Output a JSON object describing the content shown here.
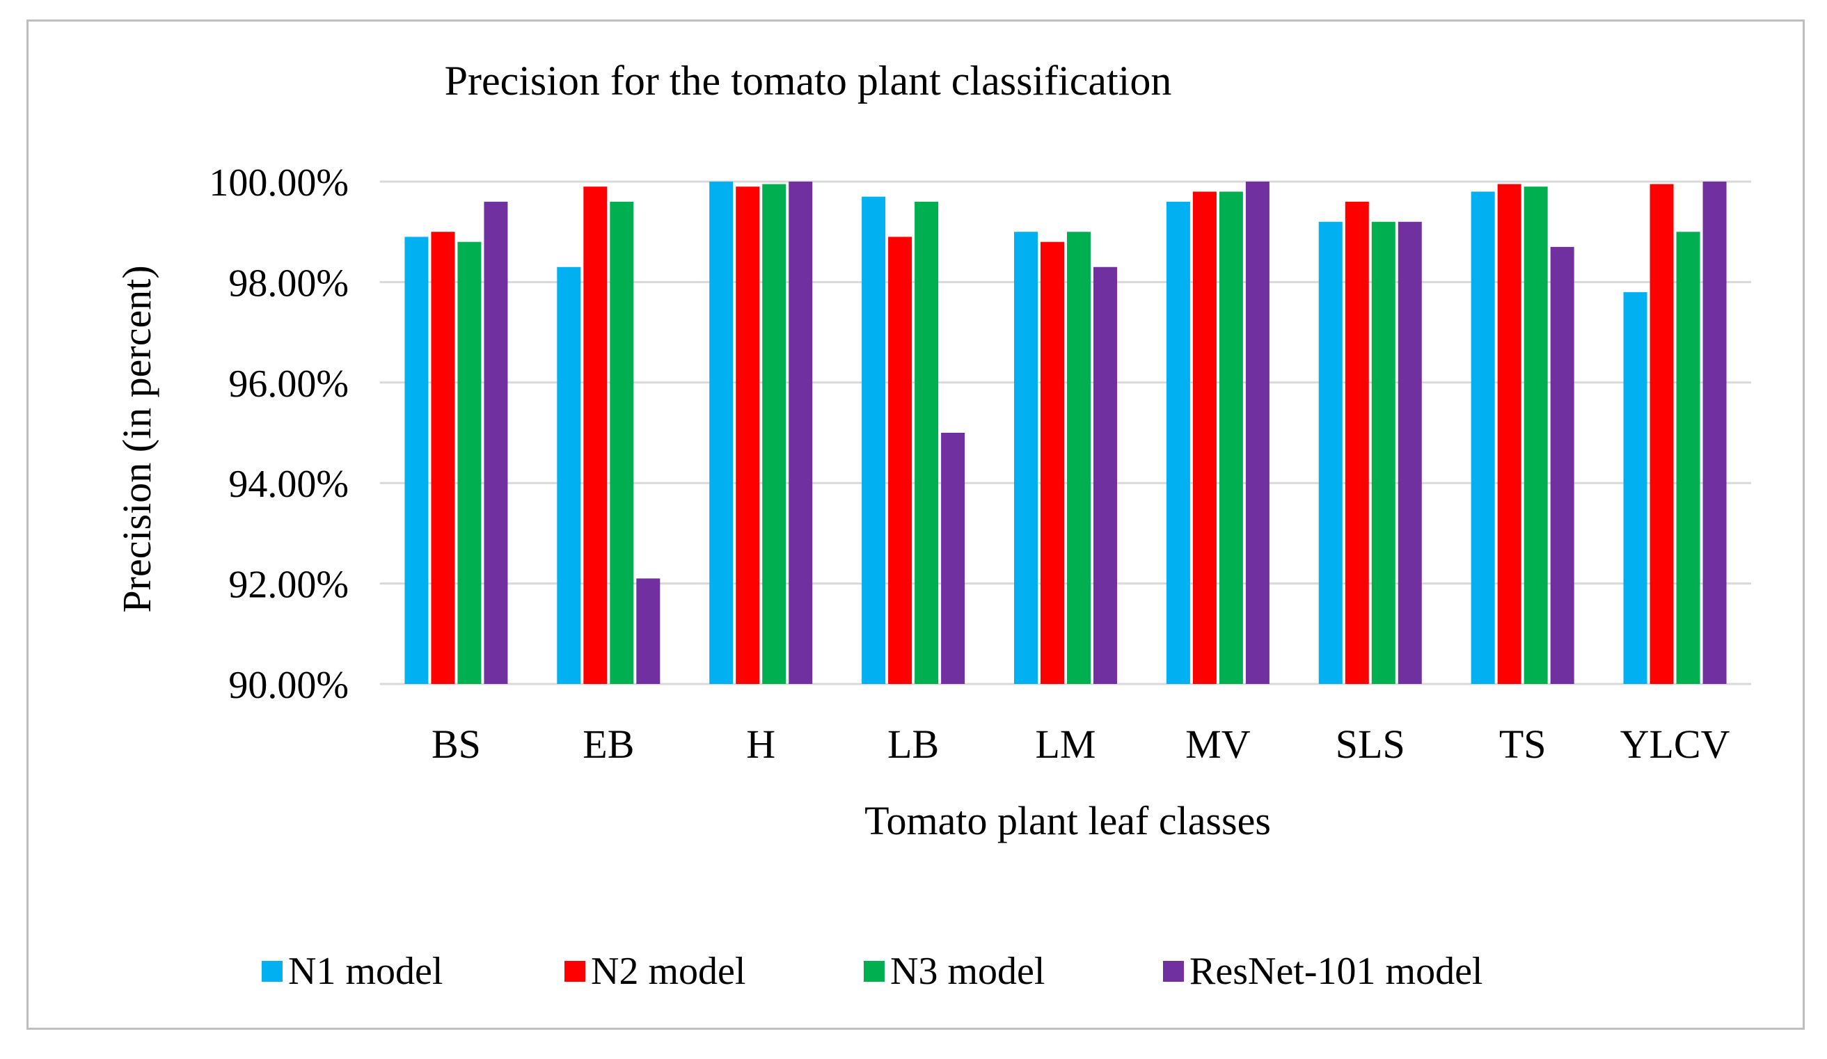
{
  "chart_data": {
    "type": "bar",
    "title": "Precision for the tomato plant classification",
    "xlabel": "Tomato plant leaf classes",
    "ylabel": "Precision (in percent)",
    "ylim": [
      90,
      100
    ],
    "yticks": [
      90,
      92,
      94,
      96,
      98,
      100
    ],
    "ytick_labels": [
      "90.00%",
      "92.00%",
      "94.00%",
      "96.00%",
      "98.00%",
      "100.00%"
    ],
    "grid": true,
    "legend_position": "bottom",
    "categories": [
      "BS",
      "EB",
      "H",
      "LB",
      "LM",
      "MV",
      "SLS",
      "TS",
      "YLCV"
    ],
    "series": [
      {
        "name": "N1 model",
        "color": "#00b0f0",
        "values": [
          98.9,
          98.3,
          100.0,
          99.7,
          99.0,
          99.6,
          99.2,
          99.8,
          97.8
        ]
      },
      {
        "name": "N2 model",
        "color": "#ff0000",
        "values": [
          99.0,
          99.9,
          99.9,
          98.9,
          98.8,
          99.8,
          99.6,
          99.95,
          99.95
        ]
      },
      {
        "name": "N3 model",
        "color": "#00b050",
        "values": [
          98.8,
          99.6,
          99.95,
          99.6,
          99.0,
          99.8,
          99.2,
          99.9,
          99.0
        ]
      },
      {
        "name": "ResNet-101 model",
        "color": "#7030a0",
        "values": [
          99.6,
          92.1,
          100.0,
          95.0,
          98.3,
          100.0,
          99.2,
          98.7,
          100.0
        ]
      }
    ]
  }
}
